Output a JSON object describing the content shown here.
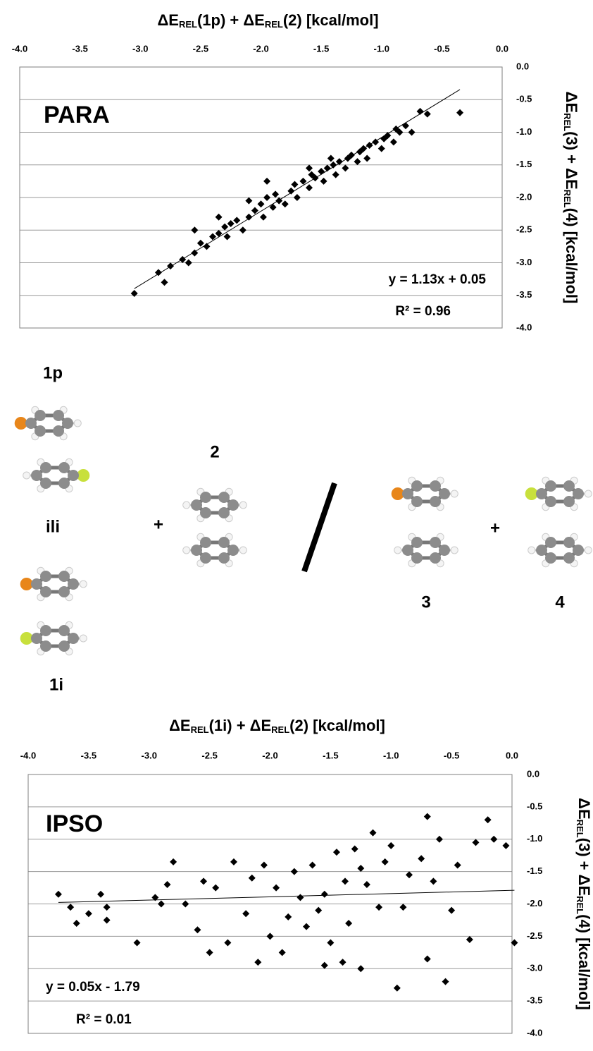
{
  "chart_data": [
    {
      "type": "scatter",
      "title": "PARA",
      "x_label": [
        "ΔE",
        "REL",
        "(1p) + ΔE",
        "REL",
        "(2) [kcal/mol]"
      ],
      "y_label": [
        "ΔE",
        "REL",
        "(3) + ΔE",
        "REL",
        "(4) [kcal/mol]"
      ],
      "x": [
        -3.05,
        -2.8,
        -2.85,
        -2.75,
        -2.65,
        -2.6,
        -2.55,
        -2.5,
        -2.45,
        -2.4,
        -2.35,
        -2.3,
        -2.28,
        -2.25,
        -2.2,
        -2.15,
        -2.1,
        -2.05,
        -2.0,
        -1.98,
        -1.95,
        -1.9,
        -1.88,
        -1.85,
        -1.8,
        -1.75,
        -1.72,
        -1.7,
        -1.65,
        -1.6,
        -1.58,
        -1.55,
        -1.5,
        -1.48,
        -1.45,
        -1.4,
        -1.38,
        -1.35,
        -1.3,
        -1.28,
        -1.25,
        -1.2,
        -1.18,
        -1.15,
        -1.12,
        -1.1,
        -1.05,
        -1.0,
        -0.98,
        -0.95,
        -0.9,
        -0.88,
        -0.85,
        -0.8,
        -0.75,
        -0.68,
        -0.62,
        -0.35,
        -2.35,
        -1.95,
        -1.6,
        -2.1,
        -1.42,
        -2.55
      ],
      "y": [
        -3.47,
        -3.3,
        -3.15,
        -3.05,
        -2.95,
        -3.0,
        -2.85,
        -2.7,
        -2.75,
        -2.6,
        -2.55,
        -2.45,
        -2.6,
        -2.4,
        -2.35,
        -2.5,
        -2.3,
        -2.2,
        -2.1,
        -2.3,
        -2.0,
        -2.15,
        -1.95,
        -2.05,
        -2.1,
        -1.9,
        -1.8,
        -2.0,
        -1.75,
        -1.85,
        -1.65,
        -1.7,
        -1.6,
        -1.75,
        -1.55,
        -1.5,
        -1.65,
        -1.45,
        -1.55,
        -1.4,
        -1.35,
        -1.45,
        -1.3,
        -1.25,
        -1.4,
        -1.2,
        -1.15,
        -1.25,
        -1.1,
        -1.05,
        -1.15,
        -0.95,
        -1.0,
        -0.9,
        -1.0,
        -0.68,
        -0.72,
        -0.7,
        -2.3,
        -1.75,
        -1.55,
        -2.05,
        -1.4,
        -2.5
      ],
      "color": "#000000",
      "xlim": [
        -4,
        0
      ],
      "ylim": [
        -4,
        0
      ],
      "xticks": [
        {
          "value": -4,
          "label": "-4.0"
        },
        -3.5,
        {
          "value": -3,
          "label": "-3.0"
        },
        -2.5,
        {
          "value": -2,
          "label": "-2.0"
        },
        -1.5,
        {
          "value": -1,
          "label": "-1.0"
        },
        -0.5,
        {
          "value": 0,
          "label": "0.0"
        }
      ],
      "yticks": [
        {
          "value": 0,
          "label": "0.0"
        },
        -0.5,
        {
          "value": -1,
          "label": "-1.0"
        },
        -1.5,
        {
          "value": -2,
          "label": "-2.0"
        },
        -2.5,
        {
          "value": -3,
          "label": "-3.0"
        },
        -3.5,
        {
          "value": -4,
          "label": "-4.0"
        }
      ],
      "grid": true,
      "trendline": {
        "slope": 1.13,
        "intercept": 0.05
      },
      "annotations": [
        "y = 1.13x + 0.05",
        "R² = 0.96"
      ]
    },
    {
      "type": "scatter",
      "title": "IPSO",
      "x_label": [
        "ΔE",
        "REL",
        "(1i) + ΔE",
        "REL",
        "(2) [kcal/mol]"
      ],
      "y_label": [
        "ΔE",
        "REL",
        "(3) + ΔE",
        "REL",
        "(4) [kcal/mol]"
      ],
      "x": [
        -3.75,
        -3.65,
        -3.6,
        -3.5,
        -3.4,
        -3.35,
        -3.35,
        -3.1,
        -2.95,
        -2.9,
        -2.85,
        -2.8,
        -2.7,
        -2.6,
        -2.55,
        -2.5,
        -2.45,
        -2.35,
        -2.3,
        -2.2,
        -2.15,
        -2.1,
        -2.05,
        -2.0,
        -1.95,
        -1.9,
        -1.85,
        -1.8,
        -1.75,
        -1.7,
        -1.65,
        -1.6,
        -1.55,
        -1.5,
        -1.45,
        -1.4,
        -1.38,
        -1.35,
        -1.3,
        -1.25,
        -1.2,
        -1.15,
        -1.1,
        -1.05,
        -1.0,
        -0.95,
        -0.9,
        -0.85,
        -0.75,
        -0.7,
        -0.65,
        -0.6,
        -0.55,
        -0.5,
        -0.45,
        -0.35,
        -0.3,
        -0.2,
        -0.15,
        -0.05,
        0.02,
        -0.7,
        -1.55,
        -1.25
      ],
      "y": [
        -1.85,
        -2.05,
        -2.3,
        -2.15,
        -1.85,
        -2.05,
        -2.25,
        -2.6,
        -1.9,
        -2.0,
        -1.7,
        -1.35,
        -2.0,
        -2.4,
        -1.65,
        -2.75,
        -1.75,
        -2.6,
        -1.35,
        -2.15,
        -1.6,
        -2.9,
        -1.4,
        -2.5,
        -1.75,
        -2.75,
        -2.2,
        -1.5,
        -1.9,
        -2.35,
        -1.4,
        -2.1,
        -1.85,
        -2.6,
        -1.2,
        -2.9,
        -1.65,
        -2.3,
        -1.15,
        -3.0,
        -1.7,
        -0.9,
        -2.05,
        -1.35,
        -1.1,
        -3.3,
        -2.05,
        -1.55,
        -1.3,
        -2.85,
        -1.65,
        -1.0,
        -3.2,
        -2.1,
        -1.4,
        -2.55,
        -1.05,
        -0.7,
        -1.0,
        -1.1,
        -2.6,
        -0.65,
        -2.95,
        -1.45
      ],
      "color": "#000000",
      "xlim": [
        -4,
        0
      ],
      "ylim": [
        -4,
        0
      ],
      "xticks": [
        {
          "value": -4,
          "label": "-4.0"
        },
        -3.5,
        {
          "value": -3,
          "label": "-3.0"
        },
        -2.5,
        {
          "value": -2,
          "label": "-2.0"
        },
        -1.5,
        {
          "value": -1,
          "label": "-1.0"
        },
        -0.5,
        {
          "value": 0,
          "label": "0.0"
        }
      ],
      "yticks": [
        {
          "value": 0,
          "label": "0.0"
        },
        -0.5,
        {
          "value": -1,
          "label": "-1.0"
        },
        -1.5,
        {
          "value": -2,
          "label": "-2.0"
        },
        -2.5,
        {
          "value": -3,
          "label": "-3.0"
        },
        -3.5,
        {
          "value": -4,
          "label": "-4.0"
        }
      ],
      "grid": true,
      "trendline": {
        "slope": 0.05,
        "intercept": -1.79
      },
      "annotations": [
        "y = 0.05x - 1.79",
        "R² = 0.01"
      ]
    }
  ],
  "diagram": {
    "labels": [
      "1p",
      "ili",
      "1i",
      "2",
      "3",
      "4"
    ],
    "operators": [
      "+",
      "+"
    ]
  }
}
